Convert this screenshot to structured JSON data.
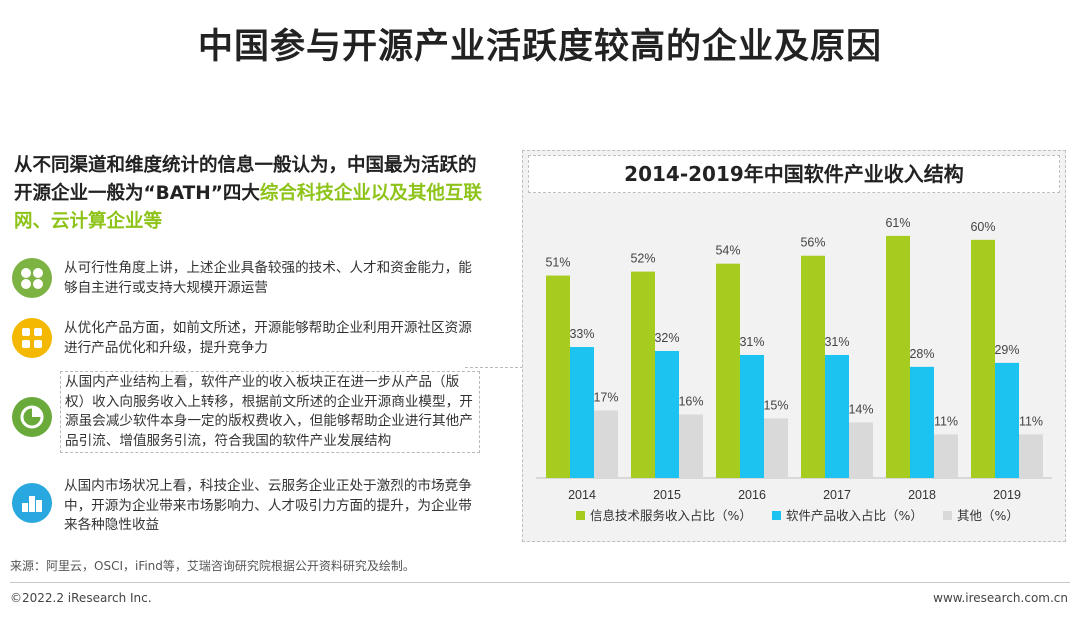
{
  "page": {
    "title": "中国参与开源产业活跃度较高的企业及原因",
    "intro_plain": "从不同渠道和维度统计的信息一般认为，中国最为活跃的开源企业一般为“BATH”四大",
    "intro_highlight": "综合科技企业以及其他互联网、云计算企业等",
    "items": [
      {
        "text": "从可行性角度上讲，上述企业具备较强的技术、人才和资金能力，能够自主进行或支持大规模开源运营",
        "icon": "people-group-icon",
        "color": "#7cb342"
      },
      {
        "text": "从优化产品方面，如前文所述，开源能够帮助企业利用开源社区资源进行产品优化和升级，提升竞争力",
        "icon": "grid-icon",
        "color": "#f5b800"
      },
      {
        "text": "从国内产业结构上看，软件产业的收入板块正在进一步从产品（版权）收入向服务收入上转移，根据前文所述的企业开源商业模型，开源虽会减少软件本身一定的版权费收入，但能够帮助企业进行其他产品引流、增值服务引流，符合我国的软件产业发展结构",
        "icon": "pie-chart-icon",
        "color": "#6aaa3a"
      },
      {
        "text": "从国内市场状况上看，科技企业、云服务企业正处于激烈的市场竞争中，开源为企业带来市场影响力、人才吸引力方面的提升，为企业带来各种隐性收益",
        "icon": "podium-icon",
        "color": "#29a8e0"
      }
    ],
    "source": "来源：阿里云，OSCI，iFind等，艾瑞咨询研究院根据公开资料研究及绘制。",
    "copyright": "©2022.2 iResearch Inc.",
    "website": "www.iresearch.com.cn"
  },
  "chart_data": {
    "type": "bar",
    "title": "2014-2019年中国软件产业收入结构",
    "categories": [
      "2014",
      "2015",
      "2016",
      "2017",
      "2018",
      "2019"
    ],
    "series": [
      {
        "name": "信息技术服务收入占比（%）",
        "values": [
          51,
          52,
          54,
          56,
          61,
          60
        ],
        "color": "#a5cc1f"
      },
      {
        "name": "软件产品收入占比（%）",
        "values": [
          33,
          32,
          31,
          31,
          28,
          29
        ],
        "color": "#1cc3f0"
      },
      {
        "name": "其他（%）",
        "values": [
          17,
          16,
          15,
          14,
          11,
          11
        ],
        "color": "#d9d9d9"
      }
    ],
    "value_suffix": "%",
    "ylim": [
      0,
      65
    ],
    "legend_position": "bottom",
    "grid": false
  }
}
